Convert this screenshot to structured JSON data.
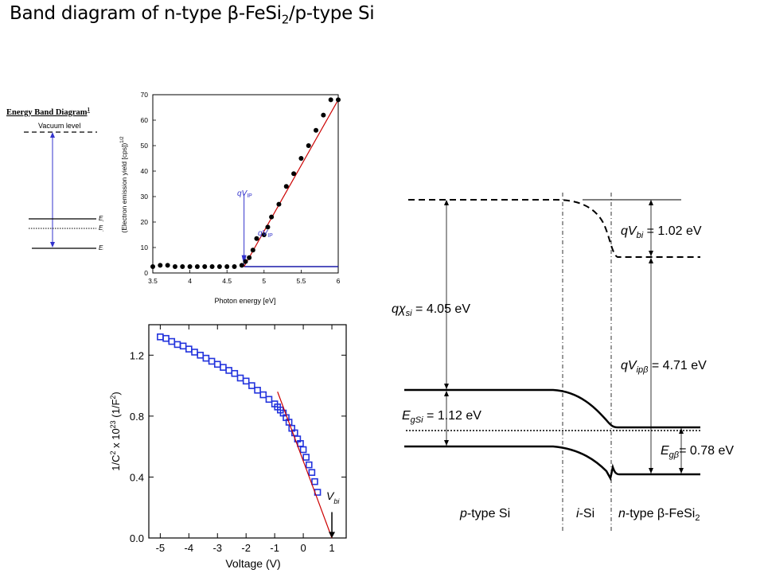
{
  "slide": {
    "title_main": "Band diagram of n-type β-FeSi",
    "title_sub": "2",
    "title_tail": "/p-type Si"
  },
  "small_band": {
    "heading": "Energy Band Diagram",
    "heading_sup": "1",
    "vacuum_label": "Vacuum level",
    "ec": "E",
    "ec_sub": "c",
    "ef": "E",
    "ef_sub": "f",
    "ev": "E",
    "ev_sub": "v"
  },
  "yield_plot": {
    "ylabel": "(Electron emission yield [cps])",
    "ylabel_sup": "1/2",
    "xlabel": "Photon energy [eV]",
    "annot1": "qV",
    "annot1_sub": "IP",
    "annot2": "qV",
    "annot2_sub": "IP"
  },
  "cv_plot": {
    "ylabel_a": "1/C",
    "ylabel_b": "2",
    "ylabel_c": " x 10",
    "ylabel_d": "23",
    "ylabel_e": " (1/F",
    "ylabel_f": "2",
    "ylabel_g": ")",
    "xlabel": "Voltage (V)",
    "vbi": "V",
    "vbi_sub": "bi"
  },
  "band": {
    "chi": "qχ",
    "chi_sub": "si",
    "chi_val": " = 4.05 eV",
    "vbi": "qV",
    "vbi_sub": "bi",
    "vbi_val": " = 1.02 eV",
    "vip": "qV",
    "vip_sub": "ipβ",
    "vip_val": " = 4.71 eV",
    "egsi": "E",
    "egsi_sub": "gSi",
    "egsi_val": " = 1.12 eV",
    "egb": "E",
    "egb_sub": "gβ",
    "egb_val": "= 0.78 eV",
    "region1_i": "p",
    "region1": "-type Si",
    "region2_i": "i",
    "region2": "-Si",
    "region3_i": "n",
    "region3": "-type β-FeSi",
    "region3_sub": "2"
  },
  "chart_data": [
    {
      "type": "scatter",
      "xlabel": "Photon energy [eV]",
      "ylabel": "(Electron emission yield [cps])^1/2",
      "xlim": [
        3.5,
        6
      ],
      "ylim": [
        0,
        70
      ],
      "x_ticks": [
        3.5,
        4,
        4.5,
        5,
        5.5,
        6
      ],
      "y_ticks": [
        0,
        10,
        20,
        30,
        40,
        50,
        60,
        70
      ],
      "series": [
        {
          "x": [
            3.5,
            3.6,
            3.7,
            3.8,
            3.9,
            4.0,
            4.1,
            4.2,
            4.3,
            4.4,
            4.5,
            4.6,
            4.7,
            4.75,
            4.8,
            4.85,
            4.9,
            5.0,
            5.05,
            5.1,
            5.2,
            5.3,
            5.4,
            5.5,
            5.6,
            5.7,
            5.8,
            5.9,
            6.0
          ],
          "y": [
            2.5,
            3.0,
            3.0,
            2.5,
            2.5,
            2.5,
            2.5,
            2.5,
            2.5,
            2.5,
            2.5,
            2.5,
            3.0,
            4.5,
            6.0,
            9.0,
            13.5,
            15.0,
            18.0,
            22.0,
            27.0,
            34.0,
            39.0,
            45.0,
            50.0,
            56.0,
            62.0,
            68.0,
            68.0
          ]
        }
      ],
      "baseline": 2.5,
      "fit_line": [
        [
          4.73,
          2.5
        ],
        [
          6.0,
          68.0
        ]
      ]
    },
    {
      "type": "scatter",
      "xlabel": "Voltage (V)",
      "ylabel": "1/C2 x 1023 (1/F2)",
      "xlim": [
        -5.4,
        1.5
      ],
      "ylim": [
        0,
        1.4
      ],
      "x_ticks": [
        -5,
        -4,
        -3,
        -2,
        -1,
        0,
        1
      ],
      "y_ticks": [
        0.0,
        0.4,
        0.8,
        1.2
      ],
      "series": [
        {
          "x": [
            -5.0,
            -4.8,
            -4.6,
            -4.4,
            -4.2,
            -4.0,
            -3.8,
            -3.6,
            -3.4,
            -3.2,
            -3.0,
            -2.8,
            -2.6,
            -2.4,
            -2.2,
            -2.0,
            -1.8,
            -1.6,
            -1.4,
            -1.2,
            -1.0,
            -0.9,
            -0.8,
            -0.7,
            -0.6,
            -0.5,
            -0.4,
            -0.3,
            -0.2,
            -0.1,
            0.0,
            0.1,
            0.2,
            0.3,
            0.4,
            0.5
          ],
          "y": [
            1.32,
            1.31,
            1.29,
            1.27,
            1.26,
            1.24,
            1.22,
            1.2,
            1.18,
            1.16,
            1.14,
            1.12,
            1.1,
            1.08,
            1.05,
            1.03,
            1.0,
            0.97,
            0.94,
            0.91,
            0.88,
            0.86,
            0.84,
            0.82,
            0.79,
            0.76,
            0.72,
            0.69,
            0.65,
            0.62,
            0.58,
            0.53,
            0.48,
            0.43,
            0.37,
            0.3
          ]
        }
      ],
      "fit_line": [
        [
          -0.9,
          0.96
        ],
        [
          1.0,
          0.0
        ]
      ],
      "vbi_x": 1.0
    }
  ]
}
